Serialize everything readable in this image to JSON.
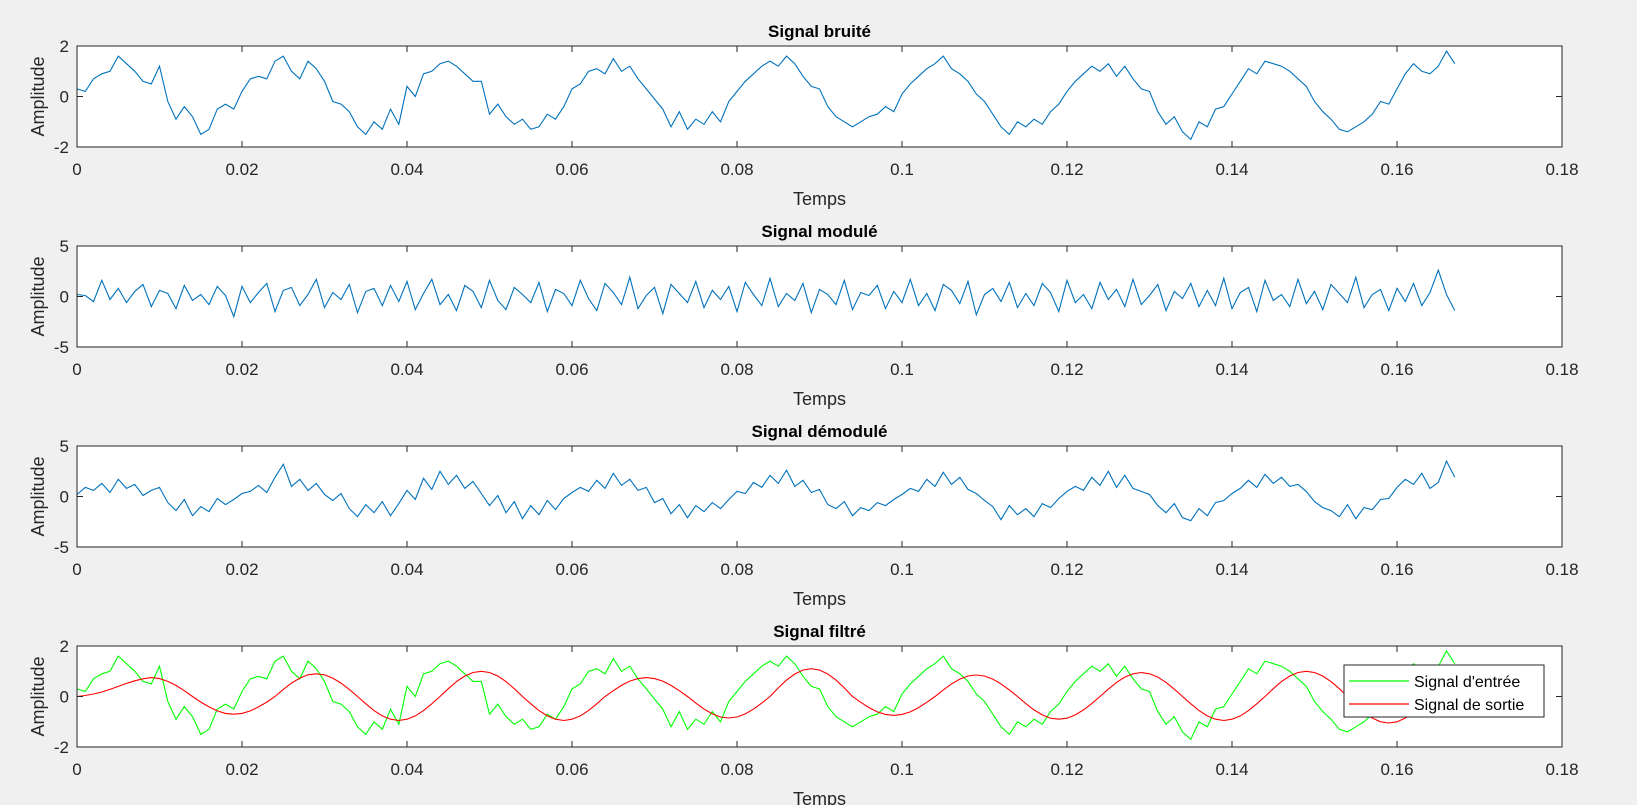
{
  "figure": {
    "background": "#f0f0f0"
  },
  "chart_data": [
    {
      "type": "line",
      "title": "Signal bruité",
      "xlabel": "Temps",
      "ylabel": "Amplitude",
      "xlim": [
        0,
        0.18
      ],
      "ylim": [
        -2,
        2
      ],
      "xticks": [
        "0",
        "0.02",
        "0.04",
        "0.06",
        "0.08",
        "0.1",
        "0.12",
        "0.14",
        "0.16",
        "0.18"
      ],
      "yticks": [
        "-2",
        "0",
        "2"
      ],
      "ytick_values": [
        -2,
        0,
        2
      ],
      "grid": false,
      "x_start": 0,
      "x_step": 0.001,
      "series": [
        {
          "color": "#0072bd",
          "values": [
            0.3,
            0.2,
            0.7,
            0.9,
            1.0,
            1.6,
            1.3,
            1.0,
            0.6,
            0.5,
            1.2,
            -0.2,
            -0.9,
            -0.4,
            -0.8,
            -1.5,
            -1.3,
            -0.5,
            -0.3,
            -0.5,
            0.2,
            0.7,
            0.8,
            0.7,
            1.4,
            1.6,
            1.0,
            0.7,
            1.4,
            1.1,
            0.6,
            -0.2,
            -0.3,
            -0.6,
            -1.2,
            -1.5,
            -1.0,
            -1.3,
            -0.5,
            -1.1,
            0.4,
            0.0,
            0.9,
            1.0,
            1.3,
            1.4,
            1.2,
            0.9,
            0.6,
            0.6,
            -0.7,
            -0.3,
            -0.8,
            -1.1,
            -0.9,
            -1.3,
            -1.2,
            -0.7,
            -0.9,
            -0.4,
            0.3,
            0.5,
            1.0,
            1.1,
            0.9,
            1.5,
            1.0,
            1.2,
            0.7,
            0.3,
            -0.1,
            -0.5,
            -1.2,
            -0.6,
            -1.3,
            -0.9,
            -1.1,
            -0.6,
            -1.0,
            -0.2,
            0.2,
            0.6,
            0.9,
            1.2,
            1.4,
            1.2,
            1.6,
            1.3,
            0.8,
            0.4,
            0.3,
            -0.4,
            -0.8,
            -1.0,
            -1.2,
            -1.0,
            -0.8,
            -0.7,
            -0.4,
            -0.6,
            0.1,
            0.5,
            0.8,
            1.1,
            1.3,
            1.6,
            1.1,
            0.9,
            0.6,
            0.1,
            -0.2,
            -0.7,
            -1.2,
            -1.5,
            -1.0,
            -1.2,
            -0.9,
            -1.1,
            -0.6,
            -0.3,
            0.2,
            0.6,
            0.9,
            1.2,
            1.0,
            1.3,
            0.8,
            1.2,
            0.7,
            0.3,
            0.2,
            -0.6,
            -1.1,
            -0.8,
            -1.4,
            -1.7,
            -1.0,
            -1.2,
            -0.5,
            -0.4,
            0.1,
            0.6,
            1.1,
            0.9,
            1.4,
            1.3,
            1.2,
            1.0,
            0.7,
            0.4,
            -0.2,
            -0.6,
            -0.9,
            -1.3,
            -1.4,
            -1.2,
            -1.0,
            -0.7,
            -0.2,
            -0.3,
            0.3,
            0.9,
            1.3,
            1.0,
            0.9,
            1.2,
            1.8,
            1.3
          ]
        }
      ]
    },
    {
      "type": "line",
      "title": "Signal modulé",
      "xlabel": "Temps",
      "ylabel": "Amplitude",
      "xlim": [
        0,
        0.18
      ],
      "ylim": [
        -5,
        5
      ],
      "xticks": [
        "0",
        "0.02",
        "0.04",
        "0.06",
        "0.08",
        "0.1",
        "0.12",
        "0.14",
        "0.16",
        "0.18"
      ],
      "yticks": [
        "-5",
        "0",
        "5"
      ],
      "ytick_values": [
        -5,
        0,
        5
      ],
      "grid": false,
      "x_start": 0,
      "x_step": 0.001,
      "series": [
        {
          "color": "#0072bd",
          "values": [
            0.2,
            0.1,
            -0.5,
            1.6,
            -0.3,
            0.8,
            -0.6,
            0.5,
            1.2,
            -1.0,
            0.6,
            0.3,
            -1.2,
            1.1,
            -0.4,
            0.2,
            -0.8,
            1.0,
            0.1,
            -2.0,
            1.0,
            -0.6,
            0.4,
            1.3,
            -1.5,
            0.6,
            0.9,
            -0.9,
            0.2,
            1.7,
            -1.1,
            0.4,
            -0.3,
            1.2,
            -1.6,
            0.5,
            0.8,
            -0.9,
            1.1,
            -0.5,
            1.5,
            -1.3,
            0.3,
            1.7,
            -0.8,
            0.2,
            -1.4,
            1.1,
            0.5,
            -1.1,
            1.6,
            -0.4,
            -1.3,
            0.9,
            0.2,
            -0.6,
            1.4,
            -1.5,
            0.7,
            0.3,
            -0.9,
            1.6,
            -0.2,
            -1.4,
            1.3,
            0.4,
            -0.8,
            1.9,
            -1.2,
            0.1,
            0.9,
            -1.7,
            1.2,
            0.3,
            -0.6,
            1.5,
            -1.1,
            0.6,
            -0.3,
            1.0,
            -1.5,
            1.4,
            0.2,
            -0.9,
            1.8,
            -1.0,
            0.3,
            -0.4,
            1.3,
            -1.6,
            0.7,
            0.2,
            -0.8,
            1.6,
            -1.3,
            0.4,
            0.1,
            1.1,
            -1.2,
            0.5,
            -0.6,
            1.7,
            -0.9,
            0.3,
            -1.4,
            1.2,
            0.6,
            -0.7,
            1.5,
            -1.8,
            0.2,
            0.8,
            -0.5,
            1.4,
            -1.1,
            0.3,
            -0.9,
            1.3,
            0.4,
            -1.5,
            1.6,
            -0.6,
            0.2,
            -1.2,
            1.4,
            -0.3,
            0.7,
            -1.0,
            1.7,
            -0.8,
            0.1,
            1.2,
            -1.4,
            0.5,
            -0.2,
            1.3,
            -1.0,
            0.6,
            -0.9,
            1.8,
            -1.2,
            0.4,
            0.9,
            -1.5,
            1.6,
            -0.4,
            0.2,
            -1.0,
            1.7,
            -0.7,
            0.5,
            -1.3,
            1.2,
            0.3,
            -0.6,
            1.9,
            -1.1,
            0.2,
            0.7,
            -1.4,
            0.8,
            -0.5,
            1.3,
            -0.9,
            0.4,
            2.6,
            0.2,
            -1.4
          ]
        }
      ]
    },
    {
      "type": "line",
      "title": "Signal démodulé",
      "xlabel": "Temps",
      "ylabel": "Amplitude",
      "xlim": [
        0,
        0.18
      ],
      "ylim": [
        -5,
        5
      ],
      "xticks": [
        "0",
        "0.02",
        "0.04",
        "0.06",
        "0.08",
        "0.1",
        "0.12",
        "0.14",
        "0.16",
        "0.18"
      ],
      "yticks": [
        "-5",
        "0",
        "5"
      ],
      "ytick_values": [
        -5,
        0,
        5
      ],
      "grid": false,
      "x_start": 0,
      "x_step": 0.001,
      "series": [
        {
          "color": "#0072bd",
          "values": [
            0.2,
            0.9,
            0.6,
            1.3,
            0.4,
            1.7,
            0.8,
            1.2,
            0.1,
            0.6,
            0.9,
            -0.6,
            -1.4,
            -0.3,
            -1.9,
            -1.0,
            -1.5,
            -0.2,
            -0.8,
            -0.3,
            0.3,
            0.5,
            1.1,
            0.4,
            1.9,
            3.2,
            1.0,
            1.7,
            0.6,
            1.3,
            0.2,
            -0.4,
            0.3,
            -1.2,
            -2.0,
            -0.8,
            -1.6,
            -0.5,
            -1.9,
            -0.7,
            0.6,
            -0.3,
            1.8,
            0.7,
            2.5,
            1.2,
            2.1,
            0.8,
            1.5,
            0.3,
            -0.9,
            0.1,
            -1.6,
            -0.5,
            -2.2,
            -0.9,
            -1.8,
            -0.4,
            -1.3,
            -0.2,
            0.4,
            0.9,
            0.5,
            1.6,
            0.8,
            2.3,
            1.1,
            1.7,
            0.6,
            0.9,
            -0.6,
            -0.2,
            -1.7,
            -0.8,
            -2.1,
            -0.9,
            -1.5,
            -0.6,
            -1.2,
            -0.3,
            0.5,
            0.3,
            1.4,
            0.9,
            2.1,
            1.3,
            2.6,
            1.0,
            1.6,
            0.4,
            0.7,
            -0.8,
            -1.2,
            -0.5,
            -1.9,
            -1.1,
            -1.4,
            -0.6,
            -0.9,
            -0.3,
            0.2,
            0.8,
            0.5,
            1.7,
            1.0,
            2.4,
            1.2,
            1.9,
            0.7,
            0.3,
            -0.4,
            -1.0,
            -2.3,
            -0.9,
            -1.8,
            -1.2,
            -2.0,
            -0.7,
            -1.1,
            -0.2,
            0.5,
            1.0,
            0.6,
            1.9,
            1.1,
            2.5,
            0.9,
            2.1,
            0.8,
            0.5,
            0.2,
            -0.9,
            -1.6,
            -0.7,
            -2.1,
            -2.4,
            -1.2,
            -1.9,
            -0.6,
            -0.4,
            0.3,
            0.8,
            1.6,
            0.9,
            2.2,
            1.3,
            1.9,
            1.0,
            1.2,
            0.5,
            -0.5,
            -1.1,
            -1.4,
            -2.0,
            -0.8,
            -2.2,
            -1.1,
            -1.3,
            -0.3,
            -0.2,
            0.9,
            1.7,
            1.2,
            2.3,
            0.8,
            1.4,
            3.5,
            1.9
          ]
        }
      ]
    },
    {
      "type": "line",
      "title": "Signal filtré",
      "xlabel": "Temps",
      "ylabel": "Amplitude",
      "xlim": [
        0,
        0.18
      ],
      "ylim": [
        -2,
        2
      ],
      "xticks": [
        "0",
        "0.02",
        "0.04",
        "0.06",
        "0.08",
        "0.1",
        "0.12",
        "0.14",
        "0.16",
        "0.18"
      ],
      "yticks": [
        "-2",
        "0",
        "2"
      ],
      "ytick_values": [
        -2,
        0,
        2
      ],
      "grid": false,
      "legend": "top-right",
      "x_start": 0,
      "x_step": 0.001,
      "series": [
        {
          "name": "Signal d'entrée",
          "color": "#00ff00",
          "values": [
            0.3,
            0.2,
            0.7,
            0.9,
            1.0,
            1.6,
            1.3,
            1.0,
            0.6,
            0.5,
            1.2,
            -0.2,
            -0.9,
            -0.4,
            -0.8,
            -1.5,
            -1.3,
            -0.5,
            -0.3,
            -0.5,
            0.2,
            0.7,
            0.8,
            0.7,
            1.4,
            1.6,
            1.0,
            0.7,
            1.4,
            1.1,
            0.6,
            -0.2,
            -0.3,
            -0.6,
            -1.2,
            -1.5,
            -1.0,
            -1.3,
            -0.5,
            -1.1,
            0.4,
            0.0,
            0.9,
            1.0,
            1.3,
            1.4,
            1.2,
            0.9,
            0.6,
            0.6,
            -0.7,
            -0.3,
            -0.8,
            -1.1,
            -0.9,
            -1.3,
            -1.2,
            -0.7,
            -0.9,
            -0.4,
            0.3,
            0.5,
            1.0,
            1.1,
            0.9,
            1.5,
            1.0,
            1.2,
            0.7,
            0.3,
            -0.1,
            -0.5,
            -1.2,
            -0.6,
            -1.3,
            -0.9,
            -1.1,
            -0.6,
            -1.0,
            -0.2,
            0.2,
            0.6,
            0.9,
            1.2,
            1.4,
            1.2,
            1.6,
            1.3,
            0.8,
            0.4,
            0.3,
            -0.4,
            -0.8,
            -1.0,
            -1.2,
            -1.0,
            -0.8,
            -0.7,
            -0.4,
            -0.6,
            0.1,
            0.5,
            0.8,
            1.1,
            1.3,
            1.6,
            1.1,
            0.9,
            0.6,
            0.1,
            -0.2,
            -0.7,
            -1.2,
            -1.5,
            -1.0,
            -1.2,
            -0.9,
            -1.1,
            -0.6,
            -0.3,
            0.2,
            0.6,
            0.9,
            1.2,
            1.0,
            1.3,
            0.8,
            1.2,
            0.7,
            0.3,
            0.2,
            -0.6,
            -1.1,
            -0.8,
            -1.4,
            -1.7,
            -1.0,
            -1.2,
            -0.5,
            -0.4,
            0.1,
            0.6,
            1.1,
            0.9,
            1.4,
            1.3,
            1.2,
            1.0,
            0.7,
            0.4,
            -0.2,
            -0.6,
            -0.9,
            -1.3,
            -1.4,
            -1.2,
            -1.0,
            -0.7,
            -0.2,
            -0.3,
            0.3,
            0.9,
            1.3,
            1.0,
            0.9,
            1.2,
            1.8,
            1.3
          ]
        },
        {
          "name": "Signal de sortie",
          "color": "#ff0000",
          "values": [
            0,
            0.04,
            0.1,
            0.18,
            0.28,
            0.4,
            0.52,
            0.62,
            0.7,
            0.75,
            0.71,
            0.6,
            0.44,
            0.23,
            0,
            -0.22,
            -0.41,
            -0.57,
            -0.67,
            -0.7,
            -0.67,
            -0.57,
            -0.41,
            -0.22,
            0,
            0.28,
            0.53,
            0.73,
            0.86,
            0.9,
            0.86,
            0.73,
            0.53,
            0.28,
            0,
            -0.29,
            -0.56,
            -0.77,
            -0.9,
            -0.95,
            -0.9,
            -0.77,
            -0.56,
            -0.29,
            0,
            0.31,
            0.59,
            0.81,
            0.95,
            1.0,
            0.95,
            0.81,
            0.59,
            0.31,
            0,
            -0.29,
            -0.56,
            -0.77,
            -0.9,
            -0.95,
            -0.9,
            -0.77,
            -0.56,
            -0.29,
            0,
            0.23,
            0.44,
            0.61,
            0.71,
            0.75,
            0.71,
            0.61,
            0.44,
            0.23,
            0,
            -0.26,
            -0.5,
            -0.69,
            -0.81,
            -0.85,
            -0.81,
            -0.69,
            -0.5,
            -0.26,
            0,
            0.34,
            0.65,
            0.89,
            1.05,
            1.1,
            1.05,
            0.89,
            0.65,
            0.34,
            0,
            -0.23,
            -0.44,
            -0.61,
            -0.71,
            -0.75,
            -0.71,
            -0.61,
            -0.44,
            -0.23,
            0,
            0.26,
            0.5,
            0.69,
            0.81,
            0.85,
            0.81,
            0.69,
            0.5,
            0.26,
            0,
            -0.28,
            -0.53,
            -0.73,
            -0.86,
            -0.9,
            -0.86,
            -0.73,
            -0.53,
            -0.28,
            0,
            0.29,
            0.56,
            0.77,
            0.9,
            0.95,
            0.9,
            0.77,
            0.56,
            0.29,
            0,
            -0.29,
            -0.56,
            -0.77,
            -0.9,
            -0.95,
            -0.9,
            -0.77,
            -0.56,
            -0.29,
            0,
            0.31,
            0.59,
            0.81,
            0.95,
            1.0,
            0.95,
            0.81,
            0.59,
            0.31,
            0,
            -0.32,
            -0.62,
            -0.85,
            -1.0,
            -1.05,
            -1.0,
            -0.85,
            -0.62,
            -0.32,
            0,
            0.28,
            0.53,
            0.73
          ]
        }
      ]
    }
  ]
}
